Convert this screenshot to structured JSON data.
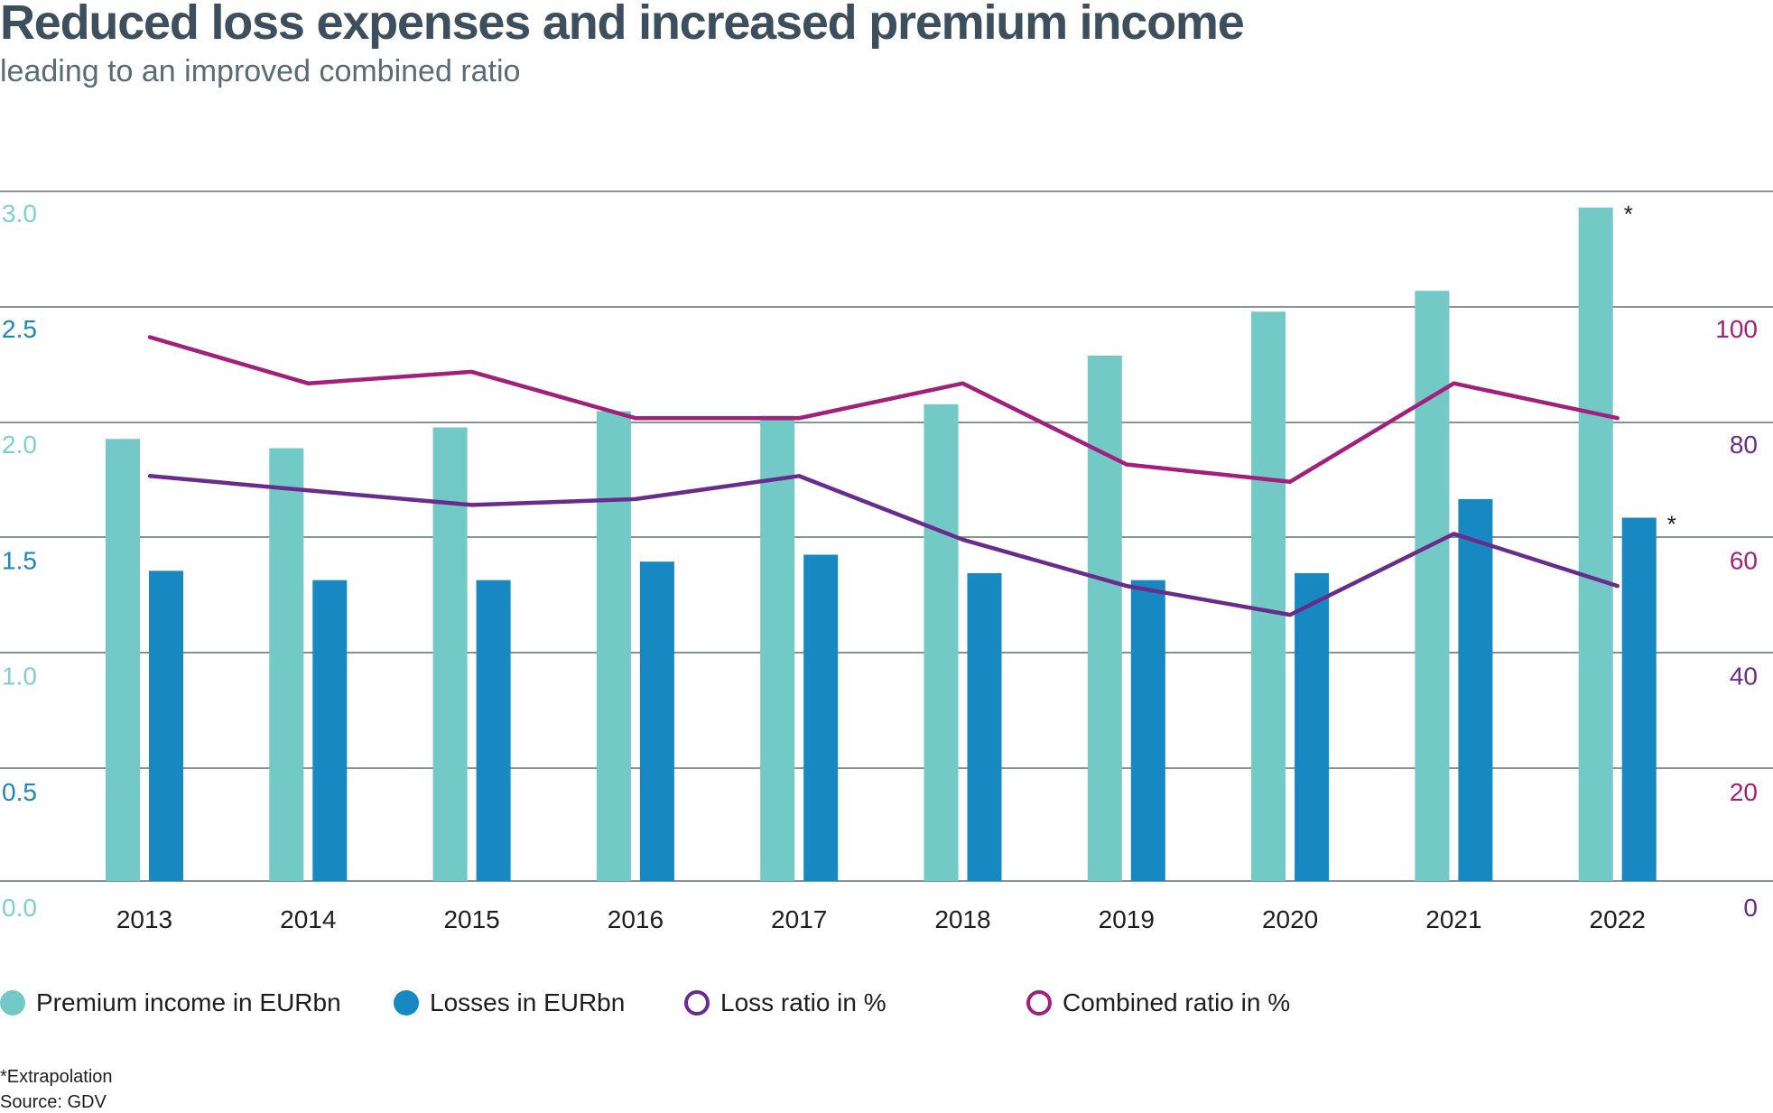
{
  "header": {
    "title": "Reduced loss expenses and increased premium income",
    "subtitle": "leading to an improved combined ratio"
  },
  "chart_data": {
    "type": "bar",
    "categories": [
      "2013",
      "2014",
      "2015",
      "2016",
      "2017",
      "2018",
      "2019",
      "2020",
      "2021",
      "2022"
    ],
    "series": [
      {
        "name": "Premium income in EURbn",
        "kind": "bar",
        "axis": "left",
        "color": "#72c9c5",
        "values": [
          1.91,
          1.87,
          1.96,
          2.03,
          2.01,
          2.06,
          2.27,
          2.46,
          2.55,
          2.91
        ]
      },
      {
        "name": "Losses in EURbn",
        "kind": "bar",
        "axis": "left",
        "color": "#1788c1",
        "values": [
          1.34,
          1.3,
          1.3,
          1.38,
          1.41,
          1.33,
          1.3,
          1.33,
          1.65,
          1.57
        ]
      },
      {
        "name": "Loss ratio in %",
        "kind": "line",
        "axis": "right",
        "color": "#6a2c8c",
        "values": [
          70,
          67.5,
          65,
          66,
          70,
          59,
          51,
          46,
          60,
          51
        ]
      },
      {
        "name": "Combined ratio in %",
        "kind": "line",
        "axis": "right",
        "color": "#a31f7c",
        "values": [
          94,
          86,
          88,
          80,
          80,
          86,
          72,
          69,
          86,
          80
        ]
      }
    ],
    "y_left": {
      "range": [
        0,
        3.0
      ],
      "ticks": [
        "0.0",
        "0.5",
        "1.0",
        "1.5",
        "2.0",
        "2.5",
        "3.0"
      ]
    },
    "y_right": {
      "range": [
        0,
        120
      ],
      "ticks": [
        "0",
        "20",
        "40",
        "60",
        "80",
        "100"
      ]
    },
    "tick_colors": {
      "left": [
        "#7fd0cc",
        "#1b88c2",
        "#7fd0cc",
        "#1b88c2",
        "#7fd0cc",
        "#1b88c2",
        "#7fd0cc"
      ],
      "right": [
        "#6a2c8c",
        "#a31f7c",
        "#6a2c8c",
        "#a31f7c",
        "#6a2c8c",
        "#a31f7c"
      ]
    },
    "annotations": [
      {
        "text": "*",
        "series": 0,
        "category": "2022"
      },
      {
        "text": "*",
        "series": 1,
        "category": "2022"
      }
    ],
    "grid": true,
    "legend": "bottom"
  },
  "footnote": {
    "extrapolation": "*Extrapolation",
    "source": "Source: GDV"
  }
}
